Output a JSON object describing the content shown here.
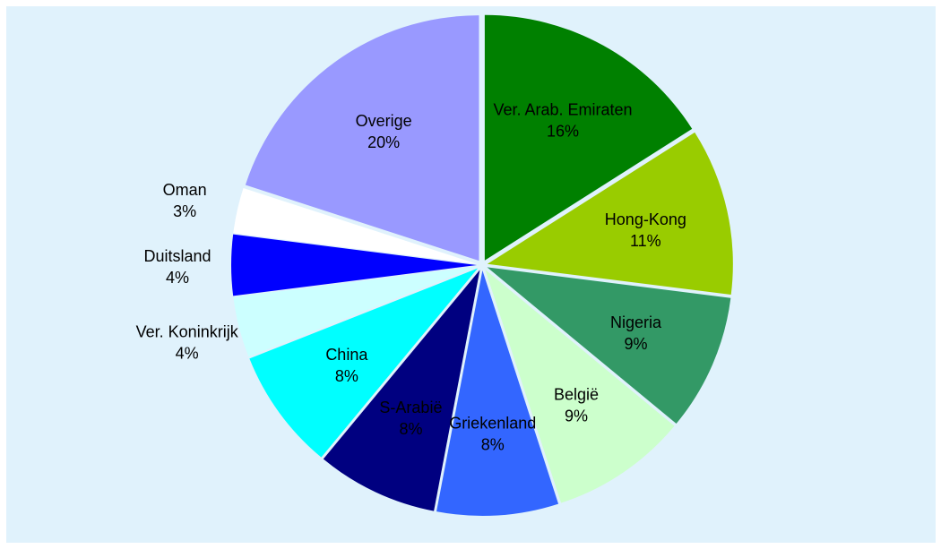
{
  "chart_data": {
    "type": "pie",
    "title": "",
    "slices": [
      {
        "label": "Ver. Arab. Emiraten",
        "value": 16,
        "value_label": "16%",
        "color": "#008000"
      },
      {
        "label": "Hong-Kong",
        "value": 11,
        "value_label": "11%",
        "color": "#99cc00"
      },
      {
        "label": "Nigeria",
        "value": 9,
        "value_label": "9%",
        "color": "#339966"
      },
      {
        "label": "België",
        "value": 9,
        "value_label": "9%",
        "color": "#ccffcc"
      },
      {
        "label": "Griekenland",
        "value": 8,
        "value_label": "8%",
        "color": "#3366ff"
      },
      {
        "label": "S-Arabië",
        "value": 8,
        "value_label": "8%",
        "color": "#000080"
      },
      {
        "label": "China",
        "value": 8,
        "value_label": "8%",
        "color": "#00ffff"
      },
      {
        "label": "Ver. Koninkrijk",
        "value": 4,
        "value_label": "4%",
        "color": "#ccffff"
      },
      {
        "label": "Duitsland",
        "value": 4,
        "value_label": "4%",
        "color": "#0000ff"
      },
      {
        "label": "Oman",
        "value": 3,
        "value_label": "3%",
        "color": "#ffffff"
      },
      {
        "label": "Overige",
        "value": 20,
        "value_label": "20%",
        "color": "#9999ff"
      }
    ],
    "background_color": "#e0f2fc",
    "legend": "none",
    "label_placement": "on-slice"
  }
}
